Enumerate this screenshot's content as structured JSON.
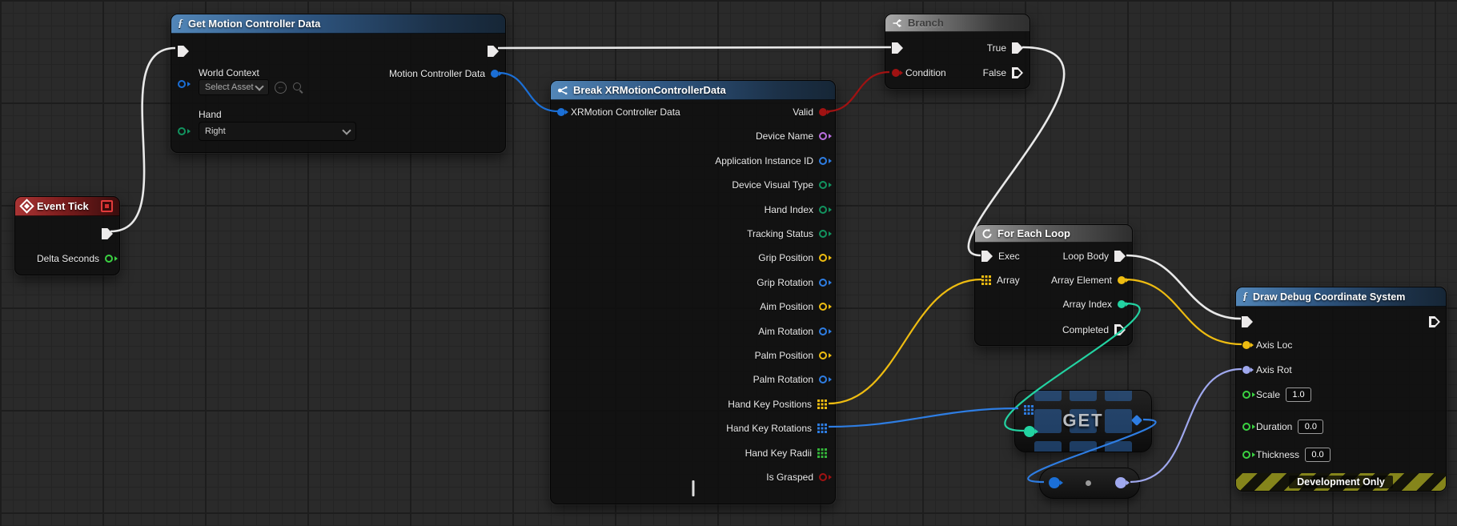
{
  "colors": {
    "exec_wire": "#e9e9e9",
    "bool_red": "#a01212",
    "struct_blue": "#1b6fd6",
    "quat_blue": "#2e7de2",
    "name_purple": "#bb6fe0",
    "enum_green": "#12935f",
    "int_seafoam": "#23d3a2",
    "vector_yellow": "#eebc11",
    "float_green": "#3bd242",
    "rotator_lavender": "#9fa8ee"
  },
  "icons": {
    "function_glyph": "ƒ",
    "event": "diamond",
    "branch": "split-arrows",
    "loop": "circular-arrows",
    "break_struct": "struct-split",
    "collapse": "chevron-up"
  },
  "nodes": {
    "event_tick": {
      "title": "Event Tick",
      "delta_seconds_label": "Delta Seconds"
    },
    "get_motion_controller_data": {
      "title": "Get Motion Controller Data",
      "world_context_label": "World Context",
      "select_asset_placeholder": "Select Asset",
      "hand_label": "Hand",
      "hand_value": "Right",
      "output_label": "Motion Controller Data"
    },
    "break_xrmotioncontrollerdata": {
      "title": "Break XRMotionControllerData",
      "input_label": "XRMotion Controller Data",
      "outputs": [
        {
          "label": "Valid",
          "type": "bool",
          "connected": true
        },
        {
          "label": "Device Name",
          "type": "name",
          "connected": false
        },
        {
          "label": "Application Instance ID",
          "type": "string",
          "connected": false
        },
        {
          "label": "Device Visual Type",
          "type": "enum",
          "connected": false
        },
        {
          "label": "Hand Index",
          "type": "enum",
          "connected": false
        },
        {
          "label": "Tracking Status",
          "type": "enum",
          "connected": false
        },
        {
          "label": "Grip Position",
          "type": "vector",
          "connected": false
        },
        {
          "label": "Grip Rotation",
          "type": "quat",
          "connected": false
        },
        {
          "label": "Aim Position",
          "type": "vector",
          "connected": false
        },
        {
          "label": "Aim Rotation",
          "type": "quat",
          "connected": false
        },
        {
          "label": "Palm Position",
          "type": "vector",
          "connected": false
        },
        {
          "label": "Palm Rotation",
          "type": "quat",
          "connected": false
        },
        {
          "label": "Hand Key Positions",
          "type": "vector_array",
          "connected": true
        },
        {
          "label": "Hand Key Rotations",
          "type": "quat_array",
          "connected": true
        },
        {
          "label": "Hand Key Radii",
          "type": "float_array",
          "connected": false
        },
        {
          "label": "Is Grasped",
          "type": "bool",
          "connected": false
        }
      ]
    },
    "branch": {
      "title": "Branch",
      "condition_label": "Condition",
      "true_label": "True",
      "false_label": "False"
    },
    "for_each_loop": {
      "title": "For Each Loop",
      "exec_label": "Exec",
      "array_label": "Array",
      "loop_body_label": "Loop Body",
      "array_element_label": "Array Element",
      "array_index_label": "Array Index",
      "completed_label": "Completed"
    },
    "array_get": {
      "label": "GET"
    },
    "draw_debug_coordinate_system": {
      "title": "Draw Debug Coordinate System",
      "axis_loc_label": "Axis Loc",
      "axis_rot_label": "Axis Rot",
      "scale_label": "Scale",
      "scale_value": "1.0",
      "duration_label": "Duration",
      "duration_value": "0.0",
      "thickness_label": "Thickness",
      "thickness_value": "0.0",
      "banner": "Development Only"
    }
  }
}
